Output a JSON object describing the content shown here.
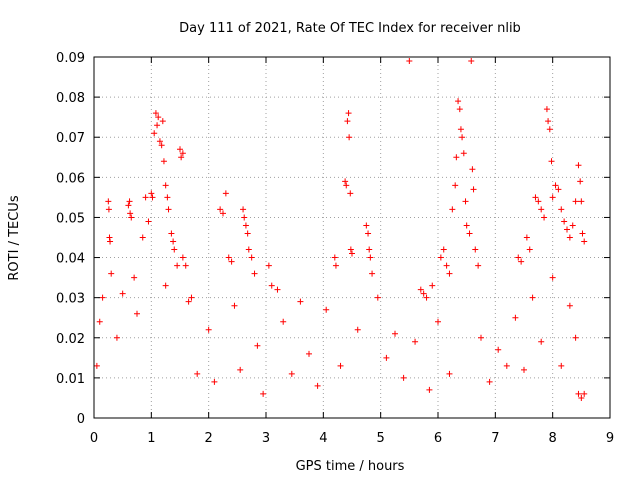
{
  "chart_data": {
    "type": "scatter",
    "title": "Day 111 of 2021, Rate Of TEC Index for receiver nlib",
    "xlabel": "GPS time / hours",
    "ylabel": "ROTI / TECUs",
    "xlim": [
      0,
      9
    ],
    "ylim": [
      0,
      0.09
    ],
    "x_ticks": [
      "0",
      "1",
      "2",
      "3",
      "4",
      "5",
      "6",
      "7",
      "8",
      "9"
    ],
    "y_ticks": [
      "0",
      "0.01",
      "0.02",
      "0.03",
      "0.04",
      "0.05",
      "0.06",
      "0.07",
      "0.08",
      "0.09"
    ],
    "grid": true,
    "marker": "+",
    "color": "#ff0000",
    "series": [
      {
        "name": "",
        "points": [
          [
            0.25,
            0.054
          ],
          [
            0.26,
            0.052
          ],
          [
            0.27,
            0.045
          ],
          [
            0.28,
            0.044
          ],
          [
            0.3,
            0.036
          ],
          [
            0.6,
            0.053
          ],
          [
            0.62,
            0.054
          ],
          [
            0.63,
            0.051
          ],
          [
            0.65,
            0.05
          ],
          [
            0.7,
            0.035
          ],
          [
            0.85,
            0.045
          ],
          [
            0.9,
            0.055
          ],
          [
            0.95,
            0.049
          ],
          [
            1.0,
            0.056
          ],
          [
            1.02,
            0.055
          ],
          [
            1.05,
            0.071
          ],
          [
            1.08,
            0.076
          ],
          [
            1.1,
            0.073
          ],
          [
            1.12,
            0.075
          ],
          [
            1.15,
            0.069
          ],
          [
            1.18,
            0.068
          ],
          [
            1.2,
            0.074
          ],
          [
            1.22,
            0.064
          ],
          [
            1.25,
            0.058
          ],
          [
            1.28,
            0.055
          ],
          [
            1.3,
            0.052
          ],
          [
            1.35,
            0.046
          ],
          [
            1.38,
            0.044
          ],
          [
            1.4,
            0.042
          ],
          [
            1.45,
            0.038
          ],
          [
            1.5,
            0.067
          ],
          [
            1.52,
            0.065
          ],
          [
            1.55,
            0.066
          ],
          [
            1.55,
            0.04
          ],
          [
            1.6,
            0.038
          ],
          [
            2.2,
            0.052
          ],
          [
            2.25,
            0.051
          ],
          [
            2.3,
            0.056
          ],
          [
            2.35,
            0.04
          ],
          [
            2.4,
            0.039
          ],
          [
            2.6,
            0.052
          ],
          [
            2.62,
            0.05
          ],
          [
            2.65,
            0.048
          ],
          [
            2.68,
            0.046
          ],
          [
            2.7,
            0.042
          ],
          [
            2.75,
            0.04
          ],
          [
            2.8,
            0.036
          ],
          [
            3.05,
            0.038
          ],
          [
            3.1,
            0.033
          ],
          [
            3.2,
            0.032
          ],
          [
            4.2,
            0.04
          ],
          [
            4.22,
            0.038
          ],
          [
            4.38,
            0.059
          ],
          [
            4.4,
            0.058
          ],
          [
            4.42,
            0.074
          ],
          [
            4.44,
            0.076
          ],
          [
            4.45,
            0.07
          ],
          [
            4.47,
            0.056
          ],
          [
            4.48,
            0.042
          ],
          [
            4.5,
            0.041
          ],
          [
            4.75,
            0.048
          ],
          [
            4.78,
            0.046
          ],
          [
            4.8,
            0.042
          ],
          [
            4.82,
            0.04
          ],
          [
            4.85,
            0.036
          ],
          [
            5.5,
            0.089
          ],
          [
            5.7,
            0.032
          ],
          [
            5.75,
            0.031
          ],
          [
            5.8,
            0.03
          ],
          [
            5.9,
            0.033
          ],
          [
            6.05,
            0.04
          ],
          [
            6.1,
            0.042
          ],
          [
            6.15,
            0.038
          ],
          [
            6.2,
            0.036
          ],
          [
            6.25,
            0.052
          ],
          [
            6.3,
            0.058
          ],
          [
            6.32,
            0.065
          ],
          [
            6.35,
            0.079
          ],
          [
            6.38,
            0.077
          ],
          [
            6.4,
            0.072
          ],
          [
            6.42,
            0.07
          ],
          [
            6.45,
            0.066
          ],
          [
            6.48,
            0.054
          ],
          [
            6.5,
            0.048
          ],
          [
            6.55,
            0.046
          ],
          [
            6.58,
            0.089
          ],
          [
            6.6,
            0.062
          ],
          [
            6.62,
            0.057
          ],
          [
            6.65,
            0.042
          ],
          [
            6.7,
            0.038
          ],
          [
            7.4,
            0.04
          ],
          [
            7.45,
            0.039
          ],
          [
            7.55,
            0.045
          ],
          [
            7.6,
            0.042
          ],
          [
            7.7,
            0.055
          ],
          [
            7.75,
            0.054
          ],
          [
            7.8,
            0.052
          ],
          [
            7.85,
            0.05
          ],
          [
            7.9,
            0.077
          ],
          [
            7.92,
            0.074
          ],
          [
            7.95,
            0.072
          ],
          [
            7.98,
            0.064
          ],
          [
            8.0,
            0.055
          ],
          [
            8.05,
            0.058
          ],
          [
            8.1,
            0.057
          ],
          [
            8.15,
            0.052
          ],
          [
            8.2,
            0.049
          ],
          [
            8.25,
            0.047
          ],
          [
            8.3,
            0.045
          ],
          [
            8.35,
            0.048
          ],
          [
            8.4,
            0.054
          ],
          [
            8.45,
            0.063
          ],
          [
            8.48,
            0.059
          ],
          [
            8.5,
            0.054
          ],
          [
            8.52,
            0.046
          ],
          [
            8.55,
            0.044
          ],
          [
            8.45,
            0.006
          ],
          [
            8.5,
            0.005
          ],
          [
            8.55,
            0.006
          ],
          [
            1.7,
            0.03
          ],
          [
            0.05,
            0.013
          ],
          [
            0.1,
            0.024
          ],
          [
            0.15,
            0.03
          ],
          [
            0.4,
            0.02
          ],
          [
            0.5,
            0.031
          ],
          [
            0.75,
            0.026
          ],
          [
            1.25,
            0.033
          ],
          [
            1.65,
            0.029
          ],
          [
            1.8,
            0.011
          ],
          [
            2.0,
            0.022
          ],
          [
            2.1,
            0.009
          ],
          [
            2.45,
            0.028
          ],
          [
            2.55,
            0.012
          ],
          [
            2.85,
            0.018
          ],
          [
            2.95,
            0.006
          ],
          [
            3.3,
            0.024
          ],
          [
            3.45,
            0.011
          ],
          [
            3.6,
            0.029
          ],
          [
            3.75,
            0.016
          ],
          [
            3.9,
            0.008
          ],
          [
            4.05,
            0.027
          ],
          [
            4.3,
            0.013
          ],
          [
            4.6,
            0.022
          ],
          [
            4.95,
            0.03
          ],
          [
            5.1,
            0.015
          ],
          [
            5.25,
            0.021
          ],
          [
            5.4,
            0.01
          ],
          [
            5.6,
            0.019
          ],
          [
            5.85,
            0.007
          ],
          [
            6.0,
            0.024
          ],
          [
            6.2,
            0.011
          ],
          [
            6.75,
            0.02
          ],
          [
            6.9,
            0.009
          ],
          [
            7.05,
            0.017
          ],
          [
            7.2,
            0.013
          ],
          [
            7.35,
            0.025
          ],
          [
            7.5,
            0.012
          ],
          [
            7.65,
            0.03
          ],
          [
            7.8,
            0.019
          ],
          [
            8.0,
            0.035
          ],
          [
            8.15,
            0.013
          ],
          [
            8.3,
            0.028
          ],
          [
            8.4,
            0.02
          ]
        ]
      }
    ]
  }
}
